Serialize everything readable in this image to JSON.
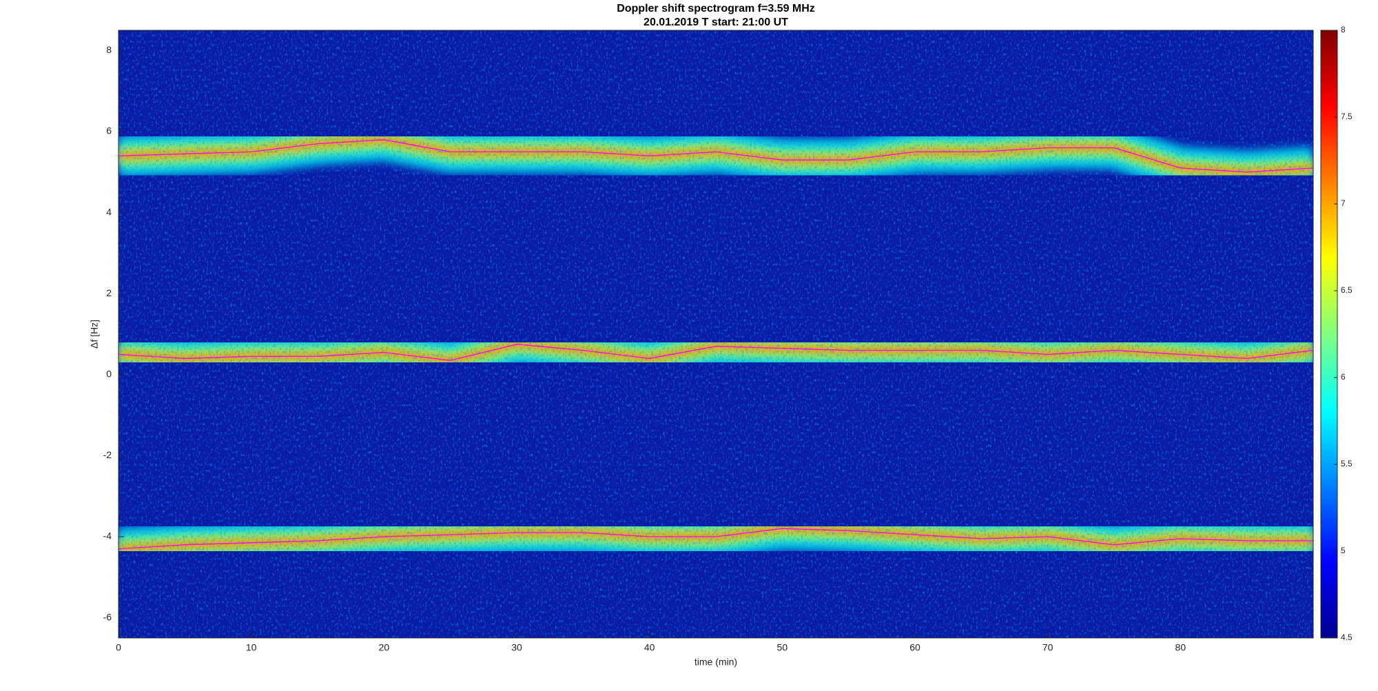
{
  "chart_data": {
    "type": "spectrogram",
    "title": "Doppler shift spectrogram f=3.59 MHz",
    "subtitle": "20.01.2019   T start: 21:00 UT",
    "xlabel": "time (min)",
    "ylabel": "Δf [Hz]",
    "xlim": [
      0,
      90
    ],
    "xticks": [
      0,
      10,
      20,
      30,
      40,
      50,
      60,
      70,
      80
    ],
    "ylim": [
      -6.5,
      8.5
    ],
    "yticks": [
      -6,
      -4,
      -2,
      0,
      2,
      4,
      6,
      8
    ],
    "clim": [
      4.5,
      8
    ],
    "cticks": [
      4.5,
      5,
      5.5,
      6,
      6.5,
      7,
      7.5,
      8
    ],
    "colormap": [
      "#00008f",
      "#0000ff",
      "#0080ff",
      "#00ffff",
      "#80ff80",
      "#ffff00",
      "#ff8000",
      "#ff0000",
      "#800000"
    ],
    "grid": false,
    "x": [
      0,
      5,
      10,
      15,
      20,
      25,
      30,
      35,
      40,
      45,
      50,
      55,
      60,
      65,
      70,
      75,
      80,
      85,
      90
    ],
    "series": [
      {
        "color": "#ff00ff",
        "values": [
          5.4,
          5.45,
          5.5,
          5.7,
          5.8,
          5.5,
          5.5,
          5.5,
          5.4,
          5.5,
          5.3,
          5.3,
          5.5,
          5.5,
          5.6,
          5.6,
          5.1,
          5.0,
          5.1
        ]
      },
      {
        "color": "#ff00ff",
        "values": [
          0.5,
          0.4,
          0.45,
          0.45,
          0.55,
          0.35,
          0.75,
          0.6,
          0.4,
          0.7,
          0.65,
          0.6,
          0.6,
          0.6,
          0.5,
          0.6,
          0.5,
          0.4,
          0.6
        ]
      },
      {
        "color": "#ff00ff",
        "values": [
          -4.3,
          -4.2,
          -4.15,
          -4.1,
          -4.0,
          -3.95,
          -3.9,
          -3.9,
          -4.0,
          -4.0,
          -3.8,
          -3.85,
          -3.95,
          -4.05,
          -4.0,
          -4.2,
          -4.05,
          -4.1,
          -4.1
        ]
      }
    ]
  }
}
